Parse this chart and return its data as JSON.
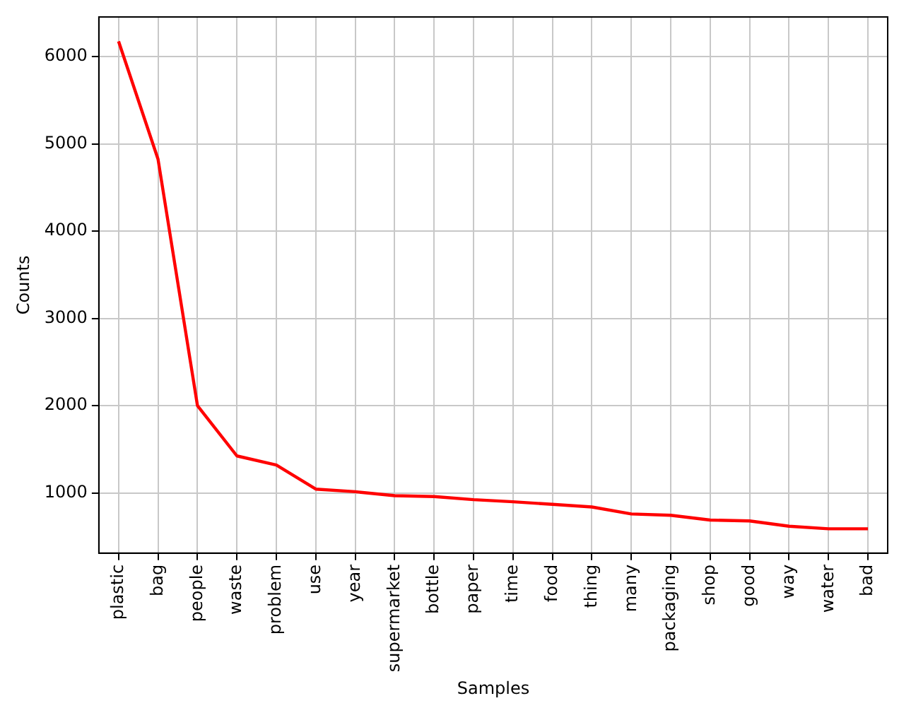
{
  "chart_data": {
    "type": "line",
    "xlabel": "Samples",
    "ylabel": "Counts",
    "categories": [
      "plastic",
      "bag",
      "people",
      "waste",
      "problem",
      "use",
      "year",
      "supermarket",
      "bottle",
      "paper",
      "time",
      "food",
      "thing",
      "many",
      "packaging",
      "shop",
      "good",
      "way",
      "water",
      "bad"
    ],
    "series": [
      {
        "color": "#ff0000",
        "values": [
          6175,
          4825,
          2000,
          1425,
          1320,
          1045,
          1015,
          970,
          960,
          924,
          900,
          870,
          840,
          760,
          745,
          690,
          680,
          620,
          590,
          590
        ]
      }
    ],
    "ylim": [
      311,
      6454
    ],
    "yticks": [
      1000,
      2000,
      3000,
      4000,
      5000,
      6000
    ],
    "grid": true,
    "legend": false,
    "marker": "none",
    "line_style": "solid"
  }
}
